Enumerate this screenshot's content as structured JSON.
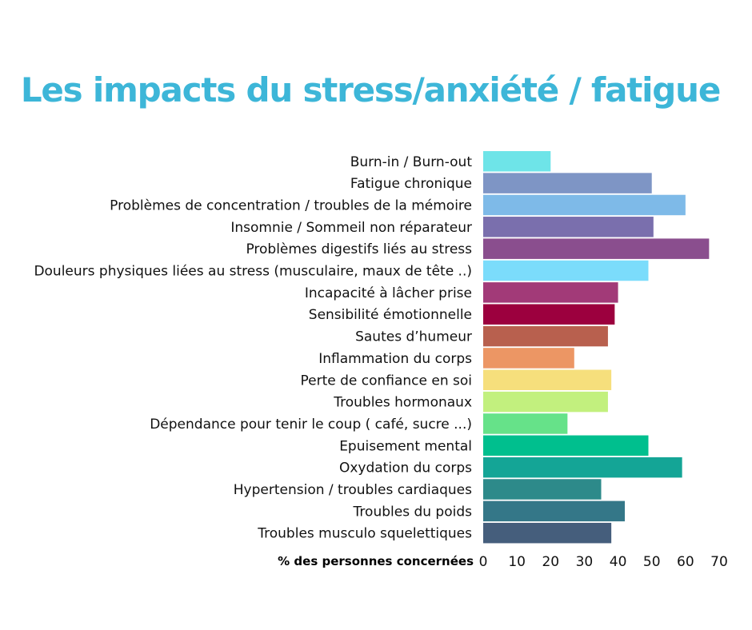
{
  "chart_data": {
    "type": "bar",
    "orientation": "horizontal",
    "title": "Les impacts du stress/anxiété / fatigue",
    "title_color": "#3db6d8",
    "xlabel": "% des personnes concernées",
    "ylabel": "",
    "xlim": [
      0,
      70
    ],
    "xticks": [
      0,
      10,
      20,
      30,
      40,
      50,
      60,
      70
    ],
    "grid": false,
    "legend": "none",
    "categories": [
      "Burn-in / Burn-out",
      "Fatigue chronique",
      "Problèmes de concentration / troubles de la mémoire",
      "Insomnie / Sommeil non réparateur",
      "Problèmes digestifs liés au stress",
      "Douleurs physiques liées au stress (musculaire, maux de tête ..)",
      "Incapacité à lâcher prise",
      "Sensibilité émotionnelle",
      "Sautes d’humeur",
      "Inflammation du corps",
      "Perte de confiance en soi",
      "Troubles hormonaux",
      "Dépendance pour tenir le coup ( café, sucre ...)",
      "Epuisement mental",
      "Oxydation du corps",
      "Hypertension / troubles cardiaques",
      "Troubles du poids",
      "Troubles musculo squelettiques"
    ],
    "values": [
      20,
      50,
      60,
      50.5,
      67,
      49,
      40,
      39,
      37,
      27,
      38,
      37,
      25,
      49,
      59,
      35,
      42,
      38
    ],
    "colors": [
      "#6ee4e8",
      "#7e95c5",
      "#7ebae8",
      "#7a6fad",
      "#8a4e8e",
      "#7bdcfb",
      "#a23a78",
      "#9c003e",
      "#b8604e",
      "#ec9664",
      "#f6df7c",
      "#c2f07e",
      "#66e289",
      "#00bf8e",
      "#14a596",
      "#2d8a8a",
      "#347788",
      "#455e7c"
    ]
  }
}
